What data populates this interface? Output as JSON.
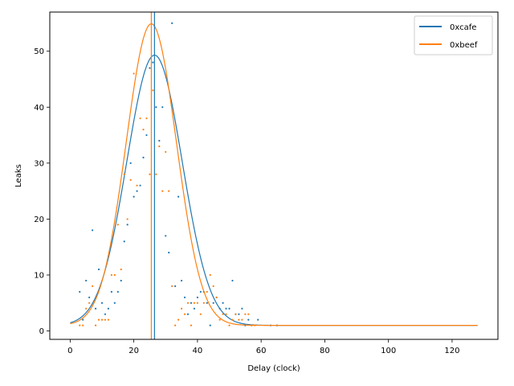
{
  "chart_data": {
    "type": "scatter",
    "xlabel": "Delay (clock)",
    "ylabel": "Leaks",
    "xlim": [
      -6.4,
      134.4
    ],
    "ylim": [
      -1.5,
      57
    ],
    "xticks": [
      0,
      20,
      40,
      60,
      80,
      100,
      120
    ],
    "yticks": [
      0,
      10,
      20,
      30,
      40,
      50
    ],
    "grid": false,
    "legend_position": "top-right",
    "series": [
      {
        "name": "0xcafe",
        "color": "#1f77b4",
        "points": [
          [
            3,
            7
          ],
          [
            4,
            2
          ],
          [
            5,
            9
          ],
          [
            6,
            6
          ],
          [
            7,
            18
          ],
          [
            8,
            4
          ],
          [
            9,
            11
          ],
          [
            10,
            5
          ],
          [
            11,
            3
          ],
          [
            12,
            4
          ],
          [
            13,
            7
          ],
          [
            14,
            5
          ],
          [
            15,
            7
          ],
          [
            16,
            9
          ],
          [
            17,
            16
          ],
          [
            18,
            19
          ],
          [
            19,
            30
          ],
          [
            20,
            24
          ],
          [
            21,
            25
          ],
          [
            22,
            26
          ],
          [
            23,
            31
          ],
          [
            24,
            35
          ],
          [
            25,
            47
          ],
          [
            26,
            48
          ],
          [
            27,
            40
          ],
          [
            28,
            34
          ],
          [
            29,
            40
          ],
          [
            30,
            17
          ],
          [
            31,
            14
          ],
          [
            32,
            55
          ],
          [
            33,
            8
          ],
          [
            34,
            24
          ],
          [
            35,
            9
          ],
          [
            36,
            6
          ],
          [
            37,
            3
          ],
          [
            38,
            5
          ],
          [
            39,
            4
          ],
          [
            40,
            6
          ],
          [
            41,
            7
          ],
          [
            42,
            7
          ],
          [
            43,
            5
          ],
          [
            44,
            1
          ],
          [
            45,
            5
          ],
          [
            46,
            6
          ],
          [
            47,
            4
          ],
          [
            48,
            5
          ],
          [
            49,
            4
          ],
          [
            50,
            4
          ],
          [
            51,
            9
          ],
          [
            52,
            3
          ],
          [
            53,
            3
          ],
          [
            54,
            4
          ],
          [
            55,
            1
          ],
          [
            56,
            2
          ],
          [
            57,
            1
          ],
          [
            59,
            2
          ],
          [
            63,
            1
          ],
          [
            65,
            1
          ]
        ],
        "fit": {
          "peak": 49.3,
          "center": 26.5,
          "sigma": 8.7,
          "offset": 1
        }
      },
      {
        "name": "0xbeef",
        "color": "#ff7f0e",
        "points": [
          [
            3,
            1
          ],
          [
            4,
            1
          ],
          [
            5,
            4
          ],
          [
            6,
            5
          ],
          [
            7,
            8
          ],
          [
            8,
            1
          ],
          [
            9,
            2
          ],
          [
            10,
            2
          ],
          [
            11,
            2
          ],
          [
            12,
            2
          ],
          [
            13,
            10
          ],
          [
            14,
            10
          ],
          [
            15,
            19
          ],
          [
            16,
            11
          ],
          [
            17,
            28
          ],
          [
            18,
            20
          ],
          [
            19,
            27
          ],
          [
            20,
            46
          ],
          [
            21,
            26
          ],
          [
            22,
            38
          ],
          [
            23,
            36
          ],
          [
            24,
            38
          ],
          [
            25,
            28
          ],
          [
            26,
            43
          ],
          [
            27,
            28
          ],
          [
            28,
            33
          ],
          [
            29,
            25
          ],
          [
            30,
            32
          ],
          [
            31,
            25
          ],
          [
            32,
            8
          ],
          [
            33,
            1
          ],
          [
            34,
            2
          ],
          [
            35,
            4
          ],
          [
            36,
            3
          ],
          [
            37,
            5
          ],
          [
            38,
            1
          ],
          [
            39,
            5
          ],
          [
            40,
            5
          ],
          [
            41,
            3
          ],
          [
            42,
            5
          ],
          [
            43,
            7
          ],
          [
            44,
            10
          ],
          [
            45,
            8
          ],
          [
            46,
            6
          ],
          [
            47,
            2
          ],
          [
            48,
            3
          ],
          [
            49,
            3
          ],
          [
            50,
            1
          ],
          [
            51,
            2
          ],
          [
            52,
            3
          ],
          [
            53,
            2
          ],
          [
            54,
            2
          ],
          [
            55,
            3
          ],
          [
            56,
            3
          ],
          [
            57,
            1
          ],
          [
            58,
            1
          ]
        ],
        "fit": {
          "peak": 54.9,
          "center": 25.5,
          "sigma": 7.9,
          "offset": 1
        }
      }
    ],
    "fit_range": [
      0,
      128
    ],
    "vlines": [
      {
        "series": "0xcafe",
        "x": 26.5
      },
      {
        "series": "0xbeef",
        "x": 25.5
      }
    ]
  }
}
